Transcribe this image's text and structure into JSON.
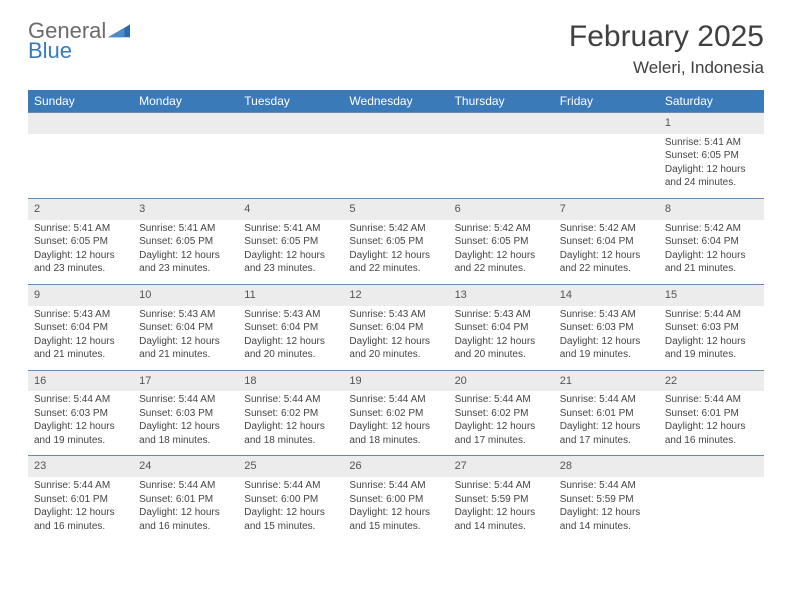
{
  "logo": {
    "word1": "General",
    "word2": "Blue"
  },
  "title": "February 2025",
  "location": "Weleri, Indonesia",
  "colors": {
    "header_bg": "#3a7ab8",
    "header_text": "#ffffff",
    "daynum_bg": "#ececec",
    "border": "#6a8bb0",
    "text": "#454545",
    "logo_gray": "#6b6b6b",
    "logo_blue": "#3a7ab8"
  },
  "days_of_week": [
    "Sunday",
    "Monday",
    "Tuesday",
    "Wednesday",
    "Thursday",
    "Friday",
    "Saturday"
  ],
  "weeks": [
    [
      null,
      null,
      null,
      null,
      null,
      null,
      {
        "n": "1",
        "sunrise": "5:41 AM",
        "sunset": "6:05 PM",
        "daylight": "12 hours and 24 minutes."
      }
    ],
    [
      {
        "n": "2",
        "sunrise": "5:41 AM",
        "sunset": "6:05 PM",
        "daylight": "12 hours and 23 minutes."
      },
      {
        "n": "3",
        "sunrise": "5:41 AM",
        "sunset": "6:05 PM",
        "daylight": "12 hours and 23 minutes."
      },
      {
        "n": "4",
        "sunrise": "5:41 AM",
        "sunset": "6:05 PM",
        "daylight": "12 hours and 23 minutes."
      },
      {
        "n": "5",
        "sunrise": "5:42 AM",
        "sunset": "6:05 PM",
        "daylight": "12 hours and 22 minutes."
      },
      {
        "n": "6",
        "sunrise": "5:42 AM",
        "sunset": "6:05 PM",
        "daylight": "12 hours and 22 minutes."
      },
      {
        "n": "7",
        "sunrise": "5:42 AM",
        "sunset": "6:04 PM",
        "daylight": "12 hours and 22 minutes."
      },
      {
        "n": "8",
        "sunrise": "5:42 AM",
        "sunset": "6:04 PM",
        "daylight": "12 hours and 21 minutes."
      }
    ],
    [
      {
        "n": "9",
        "sunrise": "5:43 AM",
        "sunset": "6:04 PM",
        "daylight": "12 hours and 21 minutes."
      },
      {
        "n": "10",
        "sunrise": "5:43 AM",
        "sunset": "6:04 PM",
        "daylight": "12 hours and 21 minutes."
      },
      {
        "n": "11",
        "sunrise": "5:43 AM",
        "sunset": "6:04 PM",
        "daylight": "12 hours and 20 minutes."
      },
      {
        "n": "12",
        "sunrise": "5:43 AM",
        "sunset": "6:04 PM",
        "daylight": "12 hours and 20 minutes."
      },
      {
        "n": "13",
        "sunrise": "5:43 AM",
        "sunset": "6:04 PM",
        "daylight": "12 hours and 20 minutes."
      },
      {
        "n": "14",
        "sunrise": "5:43 AM",
        "sunset": "6:03 PM",
        "daylight": "12 hours and 19 minutes."
      },
      {
        "n": "15",
        "sunrise": "5:44 AM",
        "sunset": "6:03 PM",
        "daylight": "12 hours and 19 minutes."
      }
    ],
    [
      {
        "n": "16",
        "sunrise": "5:44 AM",
        "sunset": "6:03 PM",
        "daylight": "12 hours and 19 minutes."
      },
      {
        "n": "17",
        "sunrise": "5:44 AM",
        "sunset": "6:03 PM",
        "daylight": "12 hours and 18 minutes."
      },
      {
        "n": "18",
        "sunrise": "5:44 AM",
        "sunset": "6:02 PM",
        "daylight": "12 hours and 18 minutes."
      },
      {
        "n": "19",
        "sunrise": "5:44 AM",
        "sunset": "6:02 PM",
        "daylight": "12 hours and 18 minutes."
      },
      {
        "n": "20",
        "sunrise": "5:44 AM",
        "sunset": "6:02 PM",
        "daylight": "12 hours and 17 minutes."
      },
      {
        "n": "21",
        "sunrise": "5:44 AM",
        "sunset": "6:01 PM",
        "daylight": "12 hours and 17 minutes."
      },
      {
        "n": "22",
        "sunrise": "5:44 AM",
        "sunset": "6:01 PM",
        "daylight": "12 hours and 16 minutes."
      }
    ],
    [
      {
        "n": "23",
        "sunrise": "5:44 AM",
        "sunset": "6:01 PM",
        "daylight": "12 hours and 16 minutes."
      },
      {
        "n": "24",
        "sunrise": "5:44 AM",
        "sunset": "6:01 PM",
        "daylight": "12 hours and 16 minutes."
      },
      {
        "n": "25",
        "sunrise": "5:44 AM",
        "sunset": "6:00 PM",
        "daylight": "12 hours and 15 minutes."
      },
      {
        "n": "26",
        "sunrise": "5:44 AM",
        "sunset": "6:00 PM",
        "daylight": "12 hours and 15 minutes."
      },
      {
        "n": "27",
        "sunrise": "5:44 AM",
        "sunset": "5:59 PM",
        "daylight": "12 hours and 14 minutes."
      },
      {
        "n": "28",
        "sunrise": "5:44 AM",
        "sunset": "5:59 PM",
        "daylight": "12 hours and 14 minutes."
      },
      null
    ]
  ],
  "labels": {
    "sunrise": "Sunrise:",
    "sunset": "Sunset:",
    "daylight": "Daylight:"
  }
}
